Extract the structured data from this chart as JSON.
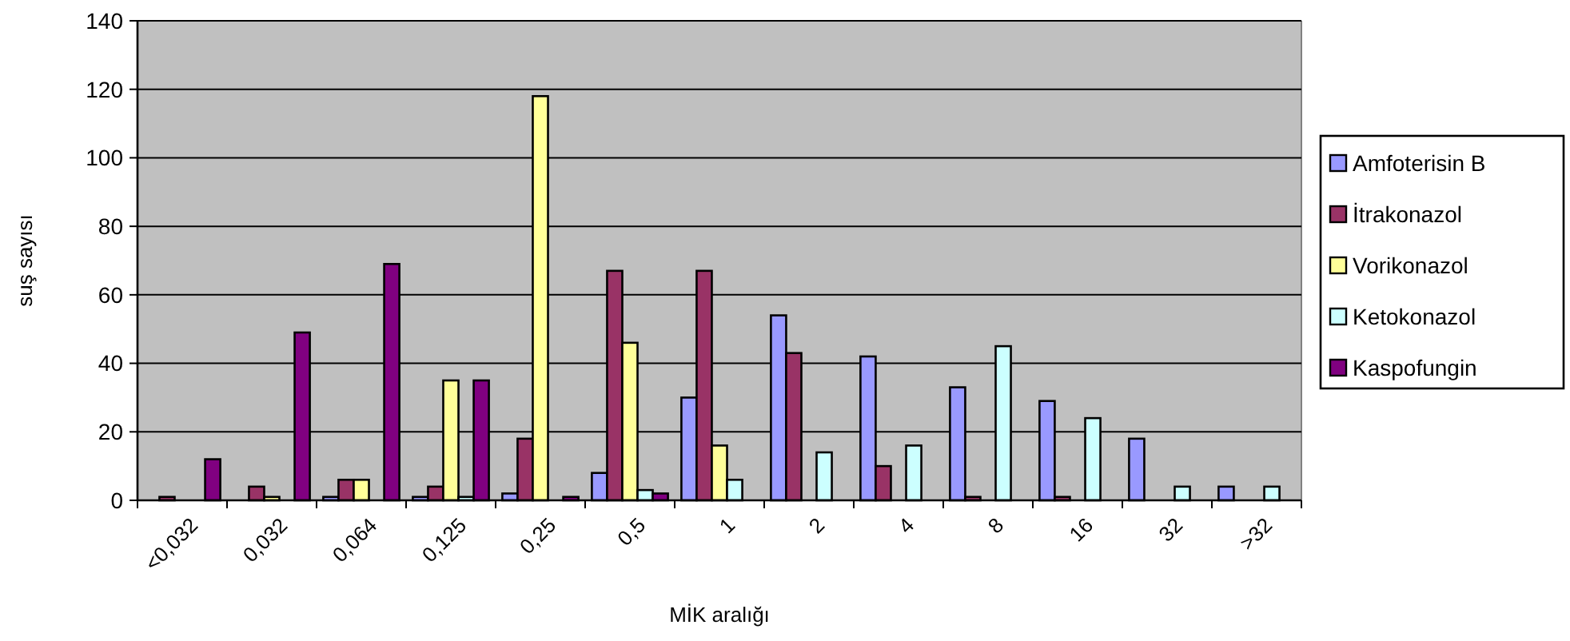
{
  "chart_data": {
    "type": "bar",
    "xlabel": "MİK aralığı",
    "ylabel": "suş sayısı",
    "categories": [
      "<0,032",
      "0,032",
      "0,064",
      "0,125",
      "0,25",
      "0,5",
      "1",
      "2",
      "4",
      "8",
      "16",
      "32",
      ">32"
    ],
    "series": [
      {
        "name": "Amfoterisin B",
        "color": "#9999ff",
        "values": [
          null,
          null,
          1,
          1,
          2,
          8,
          30,
          54,
          42,
          33,
          29,
          18,
          4
        ]
      },
      {
        "name": "İtrakonazol",
        "color": "#993366",
        "values": [
          1,
          4,
          6,
          4,
          18,
          67,
          67,
          43,
          10,
          1,
          1,
          null,
          null
        ]
      },
      {
        "name": "Vorikonazol",
        "color": "#ffff99",
        "values": [
          null,
          1,
          6,
          35,
          118,
          46,
          16,
          null,
          null,
          null,
          null,
          null,
          null
        ]
      },
      {
        "name": "Ketokonazol",
        "color": "#ccffff",
        "values": [
          null,
          null,
          null,
          1,
          null,
          3,
          6,
          14,
          16,
          45,
          24,
          4,
          4
        ]
      },
      {
        "name": "Kaspofungin",
        "color": "#800080",
        "values": [
          12,
          49,
          69,
          35,
          1,
          2,
          null,
          null,
          null,
          null,
          null,
          null,
          null
        ]
      }
    ],
    "ylim": [
      0,
      140
    ],
    "yticks": [
      0,
      20,
      40,
      60,
      80,
      100,
      120,
      140
    ],
    "grid": "y",
    "legend": "right"
  }
}
